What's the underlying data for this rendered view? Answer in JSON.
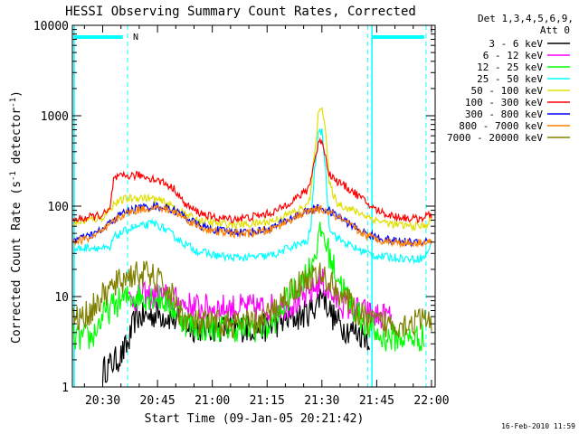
{
  "chart_data": {
    "type": "line",
    "title": "HESSI Observing Summary Count Rates, Corrected",
    "xlabel": "Start Time (09-Jan-05 20:21:42)",
    "ylabel_prefix": "Corrected Count Rate (s",
    "ylabel_sup1": "-1",
    "ylabel_mid": " detector",
    "ylabel_sup2": "-1",
    "ylabel_suffix": ")",
    "x_unit": "minutes since 20:00",
    "xlim": [
      21.7,
      121
    ],
    "ylim": [
      1,
      10000
    ],
    "yscale": "log",
    "x_ticks": [
      {
        "v": 30,
        "label": "20:30"
      },
      {
        "v": 45,
        "label": "20:45"
      },
      {
        "v": 60,
        "label": "21:00"
      },
      {
        "v": 75,
        "label": "21:15"
      },
      {
        "v": 90,
        "label": "21:30"
      },
      {
        "v": 105,
        "label": "21:45"
      },
      {
        "v": 120,
        "label": "22:00"
      }
    ],
    "y_ticks": [
      {
        "v": 1,
        "label": "1"
      },
      {
        "v": 10,
        "label": "10"
      },
      {
        "v": 100,
        "label": "100"
      },
      {
        "v": 1000,
        "label": "1000"
      },
      {
        "v": 10000,
        "label": "10000"
      }
    ],
    "legend_header_1": "Det 1,3,4,5,6,9,",
    "legend_header_2": "Att 0",
    "legend_position": "right",
    "series": [
      {
        "name": "3 - 6 keV",
        "color": "#000000",
        "points": [
          [
            30,
            1.5
          ],
          [
            35,
            2.2
          ],
          [
            37,
            3
          ],
          [
            39,
            6
          ],
          [
            42,
            6
          ],
          [
            45,
            6.5
          ],
          [
            48,
            6
          ],
          [
            52,
            5
          ],
          [
            55,
            4.5
          ],
          [
            60,
            4.5
          ],
          [
            65,
            4.5
          ],
          [
            70,
            4.5
          ],
          [
            75,
            4.5
          ],
          [
            80,
            5.5
          ],
          [
            84,
            6
          ],
          [
            87,
            7
          ],
          [
            89,
            9
          ],
          [
            90,
            12
          ],
          [
            91,
            9
          ],
          [
            93,
            6
          ],
          [
            96,
            4.5
          ],
          [
            100,
            4
          ],
          [
            103,
            3.5
          ]
        ]
      },
      {
        "name": "6 - 12 keV",
        "color": "#ff00ff",
        "points": [
          [
            37,
            9
          ],
          [
            40,
            10
          ],
          [
            44,
            10
          ],
          [
            47,
            10
          ],
          [
            50,
            9
          ],
          [
            53,
            8
          ],
          [
            57,
            7.5
          ],
          [
            60,
            7.5
          ],
          [
            65,
            7.5
          ],
          [
            70,
            7.5
          ],
          [
            75,
            7.5
          ],
          [
            80,
            8
          ],
          [
            84,
            9
          ],
          [
            87,
            11
          ],
          [
            89,
            14
          ],
          [
            90,
            15
          ],
          [
            91,
            13
          ],
          [
            93,
            10
          ],
          [
            96,
            8
          ],
          [
            100,
            7
          ],
          [
            105,
            6
          ],
          [
            109,
            6
          ]
        ]
      },
      {
        "name": "12 - 25 keV",
        "color": "#00ff00",
        "points": [
          [
            22,
            3.5
          ],
          [
            27,
            3.5
          ],
          [
            30,
            6
          ],
          [
            33,
            8
          ],
          [
            35,
            9
          ],
          [
            38,
            10
          ],
          [
            41,
            10
          ],
          [
            44,
            10
          ],
          [
            47,
            9
          ],
          [
            50,
            7
          ],
          [
            53,
            5
          ],
          [
            57,
            4.5
          ],
          [
            60,
            4.5
          ],
          [
            65,
            4.5
          ],
          [
            70,
            4.5
          ],
          [
            75,
            4.5
          ],
          [
            78,
            6
          ],
          [
            81,
            10
          ],
          [
            84,
            14
          ],
          [
            87,
            22
          ],
          [
            89,
            40
          ],
          [
            90,
            55
          ],
          [
            91,
            40
          ],
          [
            93,
            22
          ],
          [
            96,
            12
          ],
          [
            99,
            7
          ],
          [
            102,
            5
          ],
          [
            106,
            3.5
          ],
          [
            112,
            3.5
          ],
          [
            118,
            3.5
          ]
        ]
      },
      {
        "name": "25 - 50 keV",
        "color": "#00ffff",
        "points": [
          [
            22,
            33
          ],
          [
            26,
            35
          ],
          [
            28,
            35
          ],
          [
            30,
            34
          ],
          [
            32,
            33
          ],
          [
            33,
            45
          ],
          [
            35,
            50
          ],
          [
            38,
            58
          ],
          [
            41,
            60
          ],
          [
            44,
            65
          ],
          [
            47,
            56
          ],
          [
            50,
            45
          ],
          [
            53,
            37
          ],
          [
            56,
            32
          ],
          [
            60,
            29
          ],
          [
            65,
            27
          ],
          [
            70,
            27
          ],
          [
            75,
            28
          ],
          [
            78,
            30
          ],
          [
            81,
            35
          ],
          [
            84,
            38
          ],
          [
            86,
            40
          ],
          [
            87,
            60
          ],
          [
            88,
            250
          ],
          [
            89,
            600
          ],
          [
            90,
            700
          ],
          [
            91,
            250
          ],
          [
            92,
            60
          ],
          [
            94,
            45
          ],
          [
            97,
            38
          ],
          [
            100,
            33
          ],
          [
            105,
            28
          ],
          [
            110,
            27
          ],
          [
            115,
            26
          ],
          [
            118,
            27
          ],
          [
            120,
            38
          ]
        ]
      },
      {
        "name": "50 - 100 keV",
        "color": "#e0e000",
        "points": [
          [
            22,
            65
          ],
          [
            26,
            70
          ],
          [
            30,
            75
          ],
          [
            33,
            105
          ],
          [
            36,
            120
          ],
          [
            40,
            125
          ],
          [
            44,
            120
          ],
          [
            47,
            110
          ],
          [
            50,
            95
          ],
          [
            53,
            80
          ],
          [
            56,
            70
          ],
          [
            60,
            65
          ],
          [
            65,
            63
          ],
          [
            70,
            63
          ],
          [
            75,
            67
          ],
          [
            78,
            72
          ],
          [
            81,
            82
          ],
          [
            84,
            92
          ],
          [
            86,
            100
          ],
          [
            87,
            140
          ],
          [
            88,
            400
          ],
          [
            89,
            1000
          ],
          [
            90,
            1350
          ],
          [
            91,
            700
          ],
          [
            92,
            180
          ],
          [
            94,
            110
          ],
          [
            97,
            95
          ],
          [
            100,
            85
          ],
          [
            105,
            70
          ],
          [
            110,
            62
          ],
          [
            115,
            60
          ],
          [
            118,
            60
          ],
          [
            120,
            70
          ]
        ]
      },
      {
        "name": "100 - 300 keV",
        "color": "#ff0000",
        "points": [
          [
            22,
            70
          ],
          [
            26,
            75
          ],
          [
            30,
            80
          ],
          [
            32,
            90
          ],
          [
            33,
            200
          ],
          [
            36,
            215
          ],
          [
            40,
            220
          ],
          [
            44,
            200
          ],
          [
            47,
            180
          ],
          [
            50,
            150
          ],
          [
            52,
            110
          ],
          [
            55,
            90
          ],
          [
            60,
            75
          ],
          [
            65,
            72
          ],
          [
            70,
            75
          ],
          [
            75,
            82
          ],
          [
            78,
            90
          ],
          [
            81,
            110
          ],
          [
            84,
            130
          ],
          [
            86,
            150
          ],
          [
            87,
            200
          ],
          [
            88,
            320
          ],
          [
            89,
            480
          ],
          [
            90,
            550
          ],
          [
            91,
            350
          ],
          [
            92,
            230
          ],
          [
            94,
            190
          ],
          [
            97,
            160
          ],
          [
            100,
            130
          ],
          [
            104,
            95
          ],
          [
            108,
            80
          ],
          [
            112,
            75
          ],
          [
            116,
            72
          ],
          [
            120,
            80
          ]
        ]
      },
      {
        "name": "300 - 800 keV",
        "color": "#0000ff",
        "points": [
          [
            22,
            42
          ],
          [
            26,
            46
          ],
          [
            30,
            55
          ],
          [
            33,
            72
          ],
          [
            36,
            86
          ],
          [
            40,
            96
          ],
          [
            44,
            100
          ],
          [
            47,
            97
          ],
          [
            50,
            88
          ],
          [
            53,
            75
          ],
          [
            56,
            62
          ],
          [
            60,
            55
          ],
          [
            65,
            52
          ],
          [
            70,
            52
          ],
          [
            75,
            55
          ],
          [
            78,
            62
          ],
          [
            81,
            72
          ],
          [
            84,
            82
          ],
          [
            86,
            88
          ],
          [
            88,
            92
          ],
          [
            89,
            95
          ],
          [
            90,
            94
          ],
          [
            92,
            88
          ],
          [
            95,
            75
          ],
          [
            98,
            62
          ],
          [
            101,
            52
          ],
          [
            105,
            45
          ],
          [
            110,
            41
          ],
          [
            115,
            40
          ],
          [
            120,
            42
          ]
        ]
      },
      {
        "name": "800 - 7000 keV",
        "color": "#ff8000",
        "points": [
          [
            22,
            40
          ],
          [
            26,
            44
          ],
          [
            30,
            52
          ],
          [
            33,
            68
          ],
          [
            36,
            82
          ],
          [
            40,
            92
          ],
          [
            44,
            96
          ],
          [
            47,
            93
          ],
          [
            50,
            85
          ],
          [
            53,
            72
          ],
          [
            56,
            60
          ],
          [
            60,
            53
          ],
          [
            65,
            50
          ],
          [
            70,
            50
          ],
          [
            75,
            53
          ],
          [
            78,
            60
          ],
          [
            81,
            70
          ],
          [
            84,
            80
          ],
          [
            86,
            86
          ],
          [
            88,
            90
          ],
          [
            89,
            92
          ],
          [
            90,
            91
          ],
          [
            92,
            85
          ],
          [
            95,
            72
          ],
          [
            98,
            60
          ],
          [
            101,
            50
          ],
          [
            105,
            43
          ],
          [
            110,
            40
          ],
          [
            115,
            39
          ],
          [
            120,
            41
          ]
        ]
      },
      {
        "name": "7000 - 20000 keV",
        "color": "#808000",
        "points": [
          [
            22,
            5.5
          ],
          [
            25,
            6
          ],
          [
            28,
            8
          ],
          [
            31,
            11
          ],
          [
            34,
            14
          ],
          [
            37,
            17
          ],
          [
            40,
            18
          ],
          [
            43,
            17
          ],
          [
            46,
            14
          ],
          [
            49,
            10
          ],
          [
            51,
            7
          ],
          [
            53,
            5.5
          ],
          [
            57,
            5
          ],
          [
            61,
            5
          ],
          [
            65,
            5
          ],
          [
            70,
            5
          ],
          [
            74,
            5.5
          ],
          [
            77,
            7
          ],
          [
            80,
            10
          ],
          [
            83,
            13
          ],
          [
            86,
            16
          ],
          [
            89,
            17
          ],
          [
            91,
            16
          ],
          [
            93,
            13
          ],
          [
            96,
            10
          ],
          [
            99,
            7
          ],
          [
            102,
            5.5
          ],
          [
            106,
            5
          ],
          [
            112,
            5
          ],
          [
            118,
            5.5
          ],
          [
            120,
            5.5
          ]
        ]
      }
    ],
    "annotation_label": "N",
    "footer_date": "16-Feb-2010 11:59"
  }
}
